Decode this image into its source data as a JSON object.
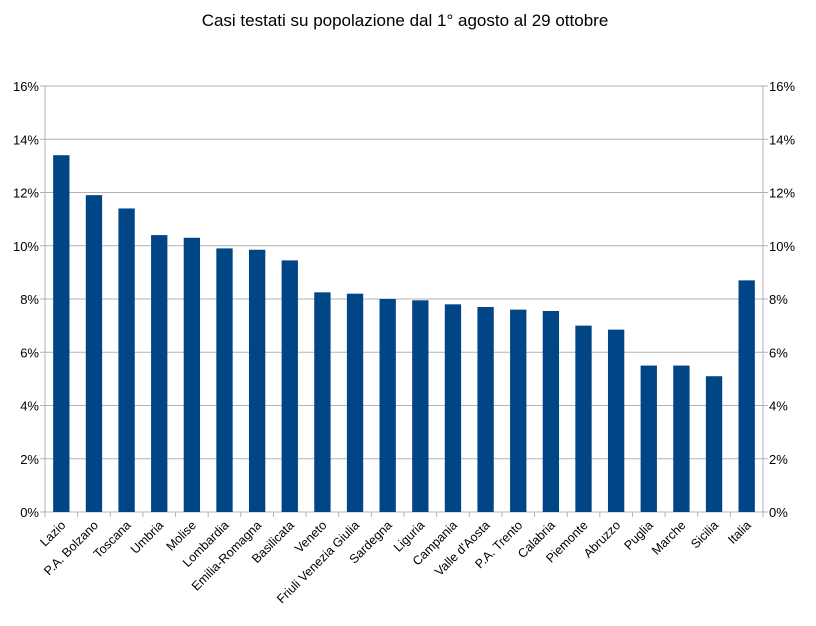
{
  "chart_data": {
    "type": "bar",
    "title": "Casi testati su popolazione dal 1° agosto al 29 ottobre",
    "categories": [
      "Lazio",
      "P.A. Bolzano",
      "Toscana",
      "Umbria",
      "Molise",
      "Lombardia",
      "Emilia-Romagna",
      "Basilicata",
      "Veneto",
      "Friuli Venezia Giulia",
      "Sardegna",
      "Liguria",
      "Campania",
      "Valle d'Aosta",
      "P.A. Trento",
      "Calabria",
      "Piemonte",
      "Abruzzo",
      "Puglia",
      "Marche",
      "Sicilia",
      "Italia"
    ],
    "series": [
      {
        "values": [
          13.4,
          11.9,
          11.4,
          10.4,
          10.3,
          9.9,
          9.85,
          9.45,
          8.25,
          8.2,
          8.0,
          7.95,
          7.8,
          7.7,
          7.6,
          7.55,
          7.0,
          6.85,
          5.5,
          5.5,
          5.1,
          8.7
        ]
      }
    ],
    "ylim": [
      0,
      16
    ],
    "yticks": [
      "0%",
      "2%",
      "4%",
      "6%",
      "8%",
      "10%",
      "12%",
      "14%",
      "16%"
    ],
    "y_axis_both_sides": true,
    "grid": true,
    "bar_color": "#004586",
    "grid_color": "#b3b3b3",
    "xlabel": "",
    "ylabel": ""
  }
}
